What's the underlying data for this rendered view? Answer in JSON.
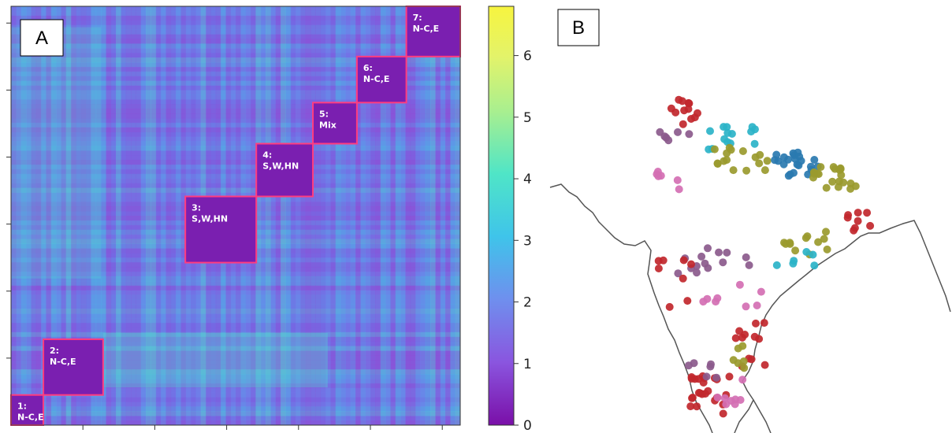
{
  "chart_data": [
    {
      "panel": "A",
      "type": "heatmap",
      "colormap": "viridis-like (purple to yellow)",
      "colorbar": {
        "ticks": [
          0,
          1,
          2,
          3,
          4,
          5,
          6
        ],
        "range": [
          0,
          6.8
        ]
      },
      "blocks": [
        {
          "id": 1,
          "label_num": "1:",
          "label_text": "N-C,E",
          "start": 0.0,
          "end": 0.072
        },
        {
          "id": 2,
          "label_num": "2:",
          "label_text": "N-C,E",
          "start": 0.072,
          "end": 0.205
        },
        {
          "id": 3,
          "label_num": "3:",
          "label_text": "S,W,HN",
          "start": 0.388,
          "end": 0.546
        },
        {
          "id": 4,
          "label_num": "4:",
          "label_text": "S,W,HN",
          "start": 0.546,
          "end": 0.672
        },
        {
          "id": 5,
          "label_num": "5:",
          "label_text": "Mix",
          "start": 0.672,
          "end": 0.77
        },
        {
          "id": 6,
          "label_num": "6:",
          "label_text": "N-C,E",
          "start": 0.77,
          "end": 0.88
        },
        {
          "id": 7,
          "label_num": "7:",
          "label_text": "N-C,E",
          "start": 0.88,
          "end": 1.0
        }
      ]
    },
    {
      "panel": "B",
      "type": "scatter",
      "description_legend": "",
      "cluster_colors": [
        "#c1272d",
        "#8b5a8c",
        "#2bb3c8",
        "#9a9a2e",
        "#2a7ab0",
        "#d46fb3"
      ]
    }
  ],
  "labels": {
    "panel_a": "A",
    "panel_b": "B"
  },
  "colors": {
    "block_border": "#ff3d7f",
    "outline": "#555555"
  }
}
